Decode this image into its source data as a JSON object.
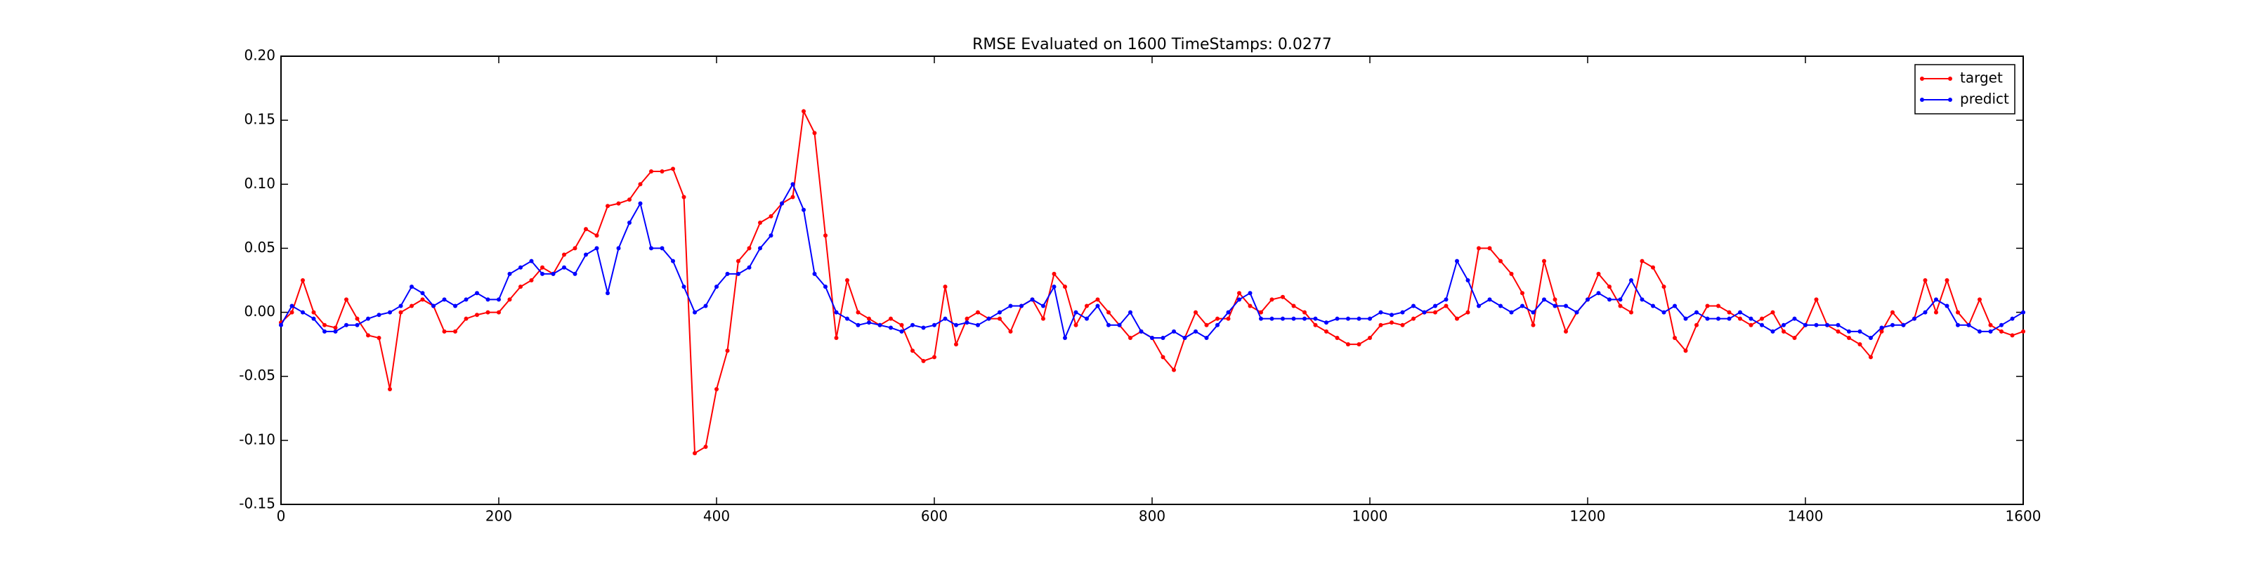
{
  "chart_data": {
    "type": "line",
    "title": "RMSE Evaluated on 1600 TimeStamps: 0.0277",
    "x": [
      0,
      10,
      20,
      30,
      40,
      50,
      60,
      70,
      80,
      90,
      100,
      110,
      120,
      130,
      140,
      150,
      160,
      170,
      180,
      190,
      200,
      210,
      220,
      230,
      240,
      250,
      260,
      270,
      280,
      290,
      300,
      310,
      320,
      330,
      340,
      350,
      360,
      370,
      380,
      390,
      400,
      410,
      420,
      430,
      440,
      450,
      460,
      470,
      480,
      490,
      500,
      510,
      520,
      530,
      540,
      550,
      560,
      570,
      580,
      590,
      600,
      610,
      620,
      630,
      640,
      650,
      660,
      670,
      680,
      690,
      700,
      710,
      720,
      730,
      740,
      750,
      760,
      770,
      780,
      790,
      800,
      810,
      820,
      830,
      840,
      850,
      860,
      870,
      880,
      890,
      900,
      910,
      920,
      930,
      940,
      950,
      960,
      970,
      980,
      990,
      1000,
      1010,
      1020,
      1030,
      1040,
      1050,
      1060,
      1070,
      1080,
      1090,
      1100,
      1110,
      1120,
      1130,
      1140,
      1150,
      1160,
      1170,
      1180,
      1190,
      1200,
      1210,
      1220,
      1230,
      1240,
      1250,
      1260,
      1270,
      1280,
      1290,
      1300,
      1310,
      1320,
      1330,
      1340,
      1350,
      1360,
      1370,
      1380,
      1390,
      1400,
      1410,
      1420,
      1430,
      1440,
      1450,
      1460,
      1470,
      1480,
      1490,
      1500,
      1510,
      1520,
      1530,
      1540,
      1550,
      1560,
      1570,
      1580,
      1590,
      1600
    ],
    "series": [
      {
        "name": "target",
        "color": "#ff0000",
        "values": [
          -0.008,
          0.0,
          0.025,
          0.0,
          -0.01,
          -0.012,
          0.01,
          -0.005,
          -0.018,
          -0.02,
          -0.06,
          0.0,
          0.005,
          0.01,
          0.005,
          -0.015,
          -0.015,
          -0.005,
          -0.002,
          0.0,
          0.0,
          0.01,
          0.02,
          0.025,
          0.035,
          0.03,
          0.045,
          0.05,
          0.065,
          0.06,
          0.083,
          0.085,
          0.088,
          0.1,
          0.11,
          0.11,
          0.112,
          0.09,
          -0.11,
          -0.105,
          -0.06,
          -0.03,
          0.04,
          0.05,
          0.07,
          0.075,
          0.085,
          0.09,
          0.157,
          0.14,
          0.06,
          -0.02,
          0.025,
          0.0,
          -0.005,
          -0.01,
          -0.005,
          -0.01,
          -0.03,
          -0.038,
          -0.035,
          0.02,
          -0.025,
          -0.005,
          0.0,
          -0.005,
          -0.005,
          -0.015,
          0.005,
          0.01,
          -0.005,
          0.03,
          0.02,
          -0.01,
          0.005,
          0.01,
          0.0,
          -0.01,
          -0.02,
          -0.015,
          -0.02,
          -0.035,
          -0.045,
          -0.02,
          0.0,
          -0.01,
          -0.005,
          -0.005,
          0.015,
          0.005,
          0.0,
          0.01,
          0.012,
          0.005,
          0.0,
          -0.01,
          -0.015,
          -0.02,
          -0.025,
          -0.025,
          -0.02,
          -0.01,
          -0.008,
          -0.01,
          -0.005,
          0.0,
          0.0,
          0.005,
          -0.005,
          0.0,
          0.05,
          0.05,
          0.04,
          0.03,
          0.015,
          -0.01,
          0.04,
          0.01,
          -0.015,
          0.0,
          0.01,
          0.03,
          0.02,
          0.005,
          0.0,
          0.04,
          0.035,
          0.02,
          -0.02,
          -0.03,
          -0.01,
          0.005,
          0.005,
          0.0,
          -0.005,
          -0.01,
          -0.005,
          0.0,
          -0.015,
          -0.02,
          -0.01,
          0.01,
          -0.01,
          -0.015,
          -0.02,
          -0.025,
          -0.035,
          -0.015,
          0.0,
          -0.01,
          -0.005,
          0.025,
          0.0,
          0.025,
          0.0,
          -0.01,
          0.01,
          -0.01,
          -0.015,
          -0.018,
          -0.015
        ]
      },
      {
        "name": "predict",
        "color": "#0000ff",
        "values": [
          -0.01,
          0.005,
          0.0,
          -0.005,
          -0.015,
          -0.015,
          -0.01,
          -0.01,
          -0.005,
          -0.002,
          0.0,
          0.005,
          0.02,
          0.015,
          0.005,
          0.01,
          0.005,
          0.01,
          0.015,
          0.01,
          0.01,
          0.03,
          0.035,
          0.04,
          0.03,
          0.03,
          0.035,
          0.03,
          0.045,
          0.05,
          0.015,
          0.05,
          0.07,
          0.085,
          0.05,
          0.05,
          0.04,
          0.02,
          0.0,
          0.005,
          0.02,
          0.03,
          0.03,
          0.035,
          0.05,
          0.06,
          0.085,
          0.1,
          0.08,
          0.03,
          0.02,
          0.0,
          -0.005,
          -0.01,
          -0.008,
          -0.01,
          -0.012,
          -0.015,
          -0.01,
          -0.012,
          -0.01,
          -0.005,
          -0.01,
          -0.008,
          -0.01,
          -0.005,
          0.0,
          0.005,
          0.005,
          0.01,
          0.005,
          0.02,
          -0.02,
          0.0,
          -0.005,
          0.005,
          -0.01,
          -0.01,
          0.0,
          -0.015,
          -0.02,
          -0.02,
          -0.015,
          -0.02,
          -0.015,
          -0.02,
          -0.01,
          0.0,
          0.01,
          0.015,
          -0.005,
          -0.005,
          -0.005,
          -0.005,
          -0.005,
          -0.005,
          -0.008,
          -0.005,
          -0.005,
          -0.005,
          -0.005,
          0.0,
          -0.002,
          0.0,
          0.005,
          0.0,
          0.005,
          0.01,
          0.04,
          0.025,
          0.005,
          0.01,
          0.005,
          0.0,
          0.005,
          0.0,
          0.01,
          0.005,
          0.005,
          0.0,
          0.01,
          0.015,
          0.01,
          0.01,
          0.025,
          0.01,
          0.005,
          0.0,
          0.005,
          -0.005,
          0.0,
          -0.005,
          -0.005,
          -0.005,
          0.0,
          -0.005,
          -0.01,
          -0.015,
          -0.01,
          -0.005,
          -0.01,
          -0.01,
          -0.01,
          -0.01,
          -0.015,
          -0.015,
          -0.02,
          -0.012,
          -0.01,
          -0.01,
          -0.005,
          0.0,
          0.01,
          0.005,
          -0.01,
          -0.01,
          -0.015,
          -0.015,
          -0.01,
          -0.005,
          0.0
        ]
      }
    ],
    "xlim": [
      0,
      1600
    ],
    "xticks": [
      0,
      200,
      400,
      600,
      800,
      1000,
      1200,
      1400,
      1600
    ],
    "ylim": [
      -0.15,
      0.2
    ],
    "yticks": [
      -0.15,
      {
        "value": -0.1,
        "label": "-0.10"
      },
      -0.05,
      {
        "value": 0,
        "label": "0.00"
      },
      0.05,
      {
        "value": 0.1,
        "label": "0.10"
      },
      0.15,
      {
        "value": 0.2,
        "label": "0.20"
      }
    ],
    "legend": "upper right",
    "grid": false
  }
}
